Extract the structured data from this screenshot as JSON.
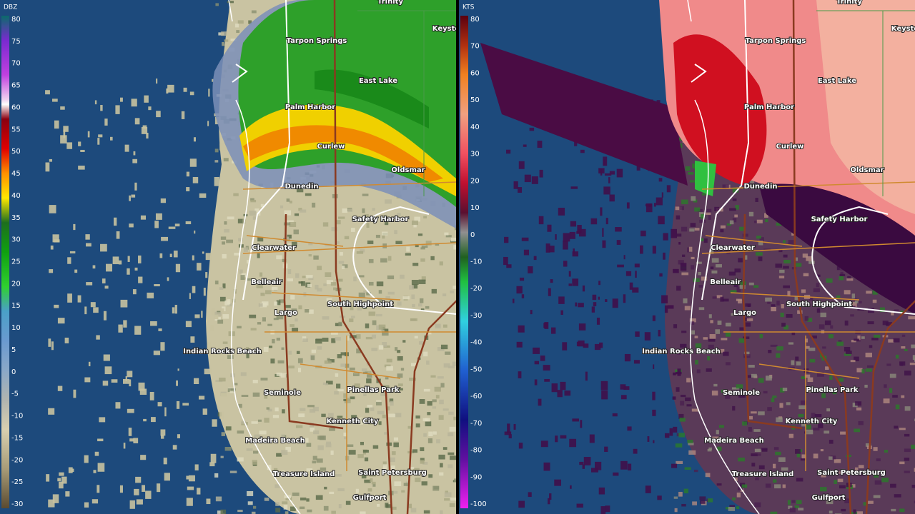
{
  "panels": [
    {
      "unit": "DBZ",
      "scale": [
        80,
        75,
        70,
        65,
        60,
        55,
        50,
        45,
        40,
        35,
        30,
        25,
        20,
        15,
        10,
        5,
        0,
        -5,
        -10,
        -15,
        -20,
        -25,
        -30
      ]
    },
    {
      "unit": "KTS",
      "scale": [
        80,
        70,
        60,
        50,
        40,
        30,
        20,
        10,
        0,
        -10,
        -20,
        -30,
        -40,
        -50,
        -60,
        -70,
        -80,
        -90,
        -100
      ]
    }
  ],
  "cities": [
    "Trinity",
    "Keysto",
    "Tarpon Springs",
    "East Lake",
    "Palm Harbor",
    "Curlew",
    "Oldsmar",
    "Dunedin",
    "Safety Harbor",
    "Clearwater",
    "Belleair",
    "Largo",
    "South Highpoint",
    "Indian Rocks Beach",
    "Seminole",
    "Pinellas Park",
    "Kenneth City",
    "Madeira Beach",
    "Treasure Island",
    "Saint Petersburg",
    "Gulfport"
  ]
}
